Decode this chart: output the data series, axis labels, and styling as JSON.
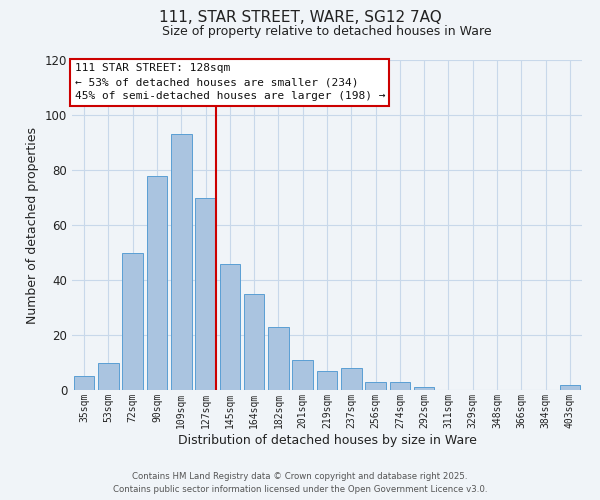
{
  "title": "111, STAR STREET, WARE, SG12 7AQ",
  "subtitle": "Size of property relative to detached houses in Ware",
  "xlabel": "Distribution of detached houses by size in Ware",
  "ylabel": "Number of detached properties",
  "bar_labels": [
    "35sqm",
    "53sqm",
    "72sqm",
    "90sqm",
    "109sqm",
    "127sqm",
    "145sqm",
    "164sqm",
    "182sqm",
    "201sqm",
    "219sqm",
    "237sqm",
    "256sqm",
    "274sqm",
    "292sqm",
    "311sqm",
    "329sqm",
    "348sqm",
    "366sqm",
    "384sqm",
    "403sqm"
  ],
  "bar_values": [
    5,
    10,
    50,
    78,
    93,
    70,
    46,
    35,
    23,
    11,
    7,
    8,
    3,
    3,
    1,
    0,
    0,
    0,
    0,
    0,
    2
  ],
  "bar_color": "#aac4e0",
  "bar_edge_color": "#5a9fd4",
  "vline_x_index": 5,
  "vline_color": "#cc0000",
  "annotation_title": "111 STAR STREET: 128sqm",
  "annotation_line1": "← 53% of detached houses are smaller (234)",
  "annotation_line2": "45% of semi-detached houses are larger (198) →",
  "annotation_box_color": "#ffffff",
  "annotation_box_edge": "#cc0000",
  "ylim": [
    0,
    120
  ],
  "yticks": [
    0,
    20,
    40,
    60,
    80,
    100,
    120
  ],
  "footnote1": "Contains HM Land Registry data © Crown copyright and database right 2025.",
  "footnote2": "Contains public sector information licensed under the Open Government Licence v3.0.",
  "background_color": "#f0f4f8",
  "grid_color": "#c8d8ea"
}
